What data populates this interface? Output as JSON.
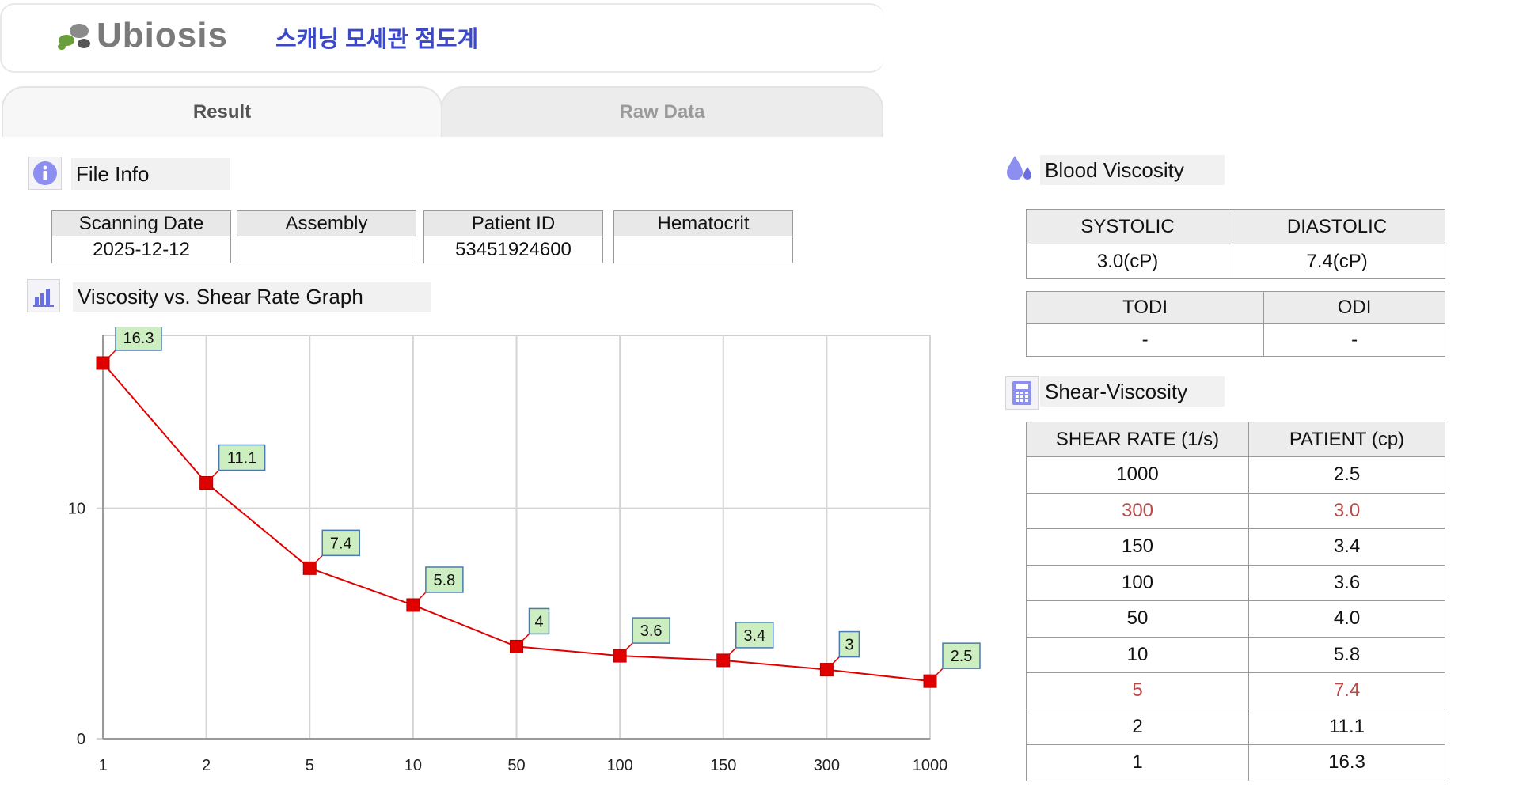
{
  "app": {
    "logo_text": "Ubiosis",
    "title": "스캐닝 모세관 점도계"
  },
  "tabs": [
    {
      "label": "Result",
      "active": true
    },
    {
      "label": "Raw Data",
      "active": false
    }
  ],
  "file_info": {
    "title": "File Info",
    "fields": [
      {
        "label": "Scanning Date",
        "value": "2025-12-12"
      },
      {
        "label": "Assembly",
        "value": ""
      },
      {
        "label": "Patient ID",
        "value": "53451924600"
      },
      {
        "label": "Hematocrit",
        "value": ""
      }
    ]
  },
  "graph_section": {
    "title": "Viscosity vs. Shear Rate Graph"
  },
  "chart_data": {
    "type": "line",
    "x_tick_labels": [
      "1",
      "2",
      "5",
      "10",
      "50",
      "100",
      "150",
      "300",
      "1000"
    ],
    "x_axis_spacing": "categorical (equal spacing)",
    "values": [
      16.3,
      11.1,
      7.4,
      5.8,
      4,
      3.6,
      3.4,
      3,
      2.5
    ],
    "data_labels": [
      "16.3",
      "11.1",
      "7.4",
      "5.8",
      "4",
      "3.6",
      "3.4",
      "3",
      "2.5"
    ],
    "y_ticks": [
      0,
      10
    ],
    "ylim": [
      0,
      17.5
    ],
    "grid": true,
    "series_color": "#e00000",
    "label_bg": "#cdeec0"
  },
  "blood_viscosity": {
    "title": "Blood Viscosity",
    "headers": [
      "SYSTOLIC",
      "DIASTOLIC"
    ],
    "values": [
      "3.0(cP)",
      "7.4(cP)"
    ],
    "headers2": [
      "TODI",
      "ODI"
    ],
    "values2": [
      "-",
      "-"
    ]
  },
  "shear_viscosity": {
    "title": "Shear-Viscosity",
    "headers": [
      "SHEAR RATE (1/s)",
      "PATIENT (cp)"
    ],
    "rows": [
      {
        "rate": "1000",
        "value": "2.5",
        "highlight": false
      },
      {
        "rate": "300",
        "value": "3.0",
        "highlight": true
      },
      {
        "rate": "150",
        "value": "3.4",
        "highlight": false
      },
      {
        "rate": "100",
        "value": "3.6",
        "highlight": false
      },
      {
        "rate": "50",
        "value": "4.0",
        "highlight": false
      },
      {
        "rate": "10",
        "value": "5.8",
        "highlight": false
      },
      {
        "rate": "5",
        "value": "7.4",
        "highlight": true
      },
      {
        "rate": "2",
        "value": "11.1",
        "highlight": false
      },
      {
        "rate": "1",
        "value": "16.3",
        "highlight": false
      }
    ],
    "highlight_color": "#b84a4a"
  }
}
